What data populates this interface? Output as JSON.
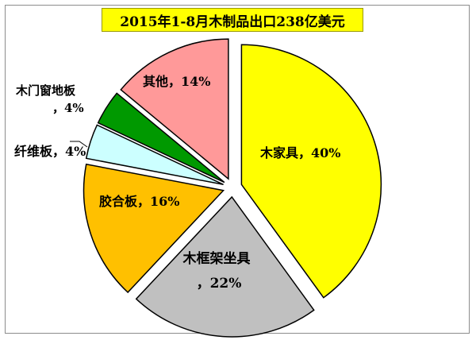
{
  "chart_data": {
    "type": "pie",
    "title": "2015年1-8月木制品出口238亿美元",
    "slices": [
      {
        "name": "木家具",
        "value": 40,
        "label": "木家具，40%",
        "color": "#ffff00"
      },
      {
        "name": "木框架坐具",
        "value": 22,
        "label": "木框架坐具，22%",
        "color": "#c0c0c0"
      },
      {
        "name": "胶合板",
        "value": 16,
        "label": "胶合板，16%",
        "color": "#ffc000"
      },
      {
        "name": "纤维板",
        "value": 4,
        "label": "纤维板，4%",
        "color": "#ccffff"
      },
      {
        "name": "木门窗地板",
        "value": 4,
        "label": "木门窗地板，4%",
        "color": "#009900"
      },
      {
        "name": "其他",
        "value": 14,
        "label": "其他，14%",
        "color": "#ff9999"
      }
    ],
    "legend": "none",
    "exploded": true
  }
}
